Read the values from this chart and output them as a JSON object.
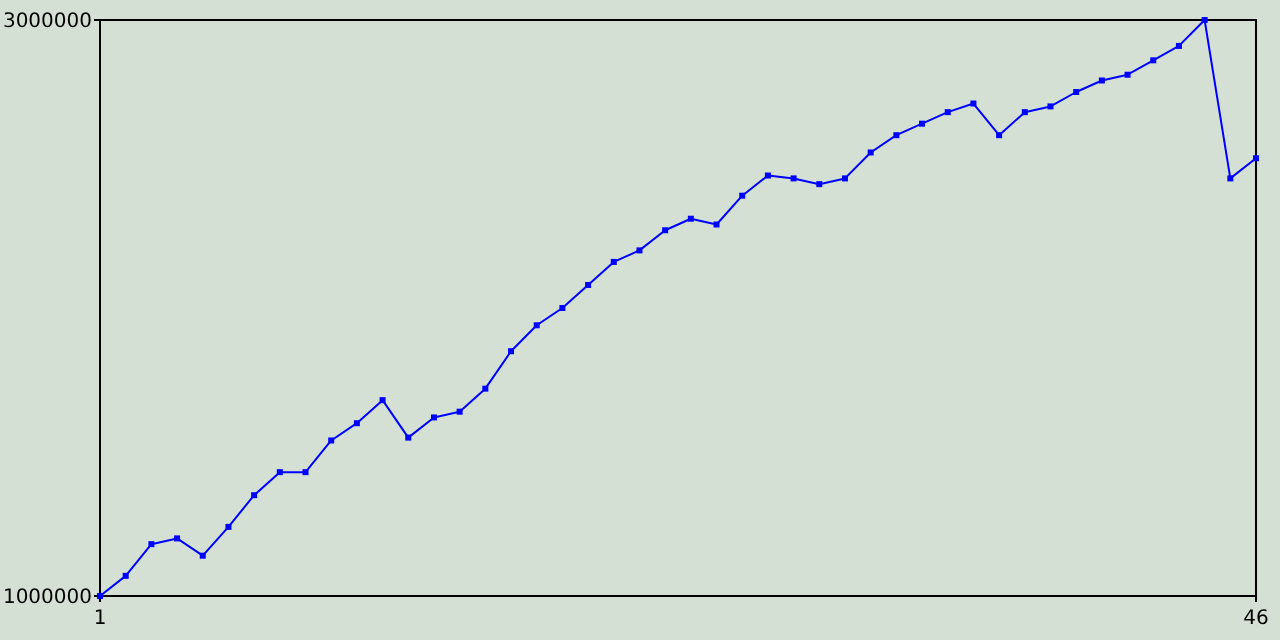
{
  "chart_data": {
    "type": "line",
    "x": [
      1,
      2,
      3,
      4,
      5,
      6,
      7,
      8,
      9,
      10,
      11,
      12,
      13,
      14,
      15,
      16,
      17,
      18,
      19,
      20,
      21,
      22,
      23,
      24,
      25,
      26,
      27,
      28,
      29,
      30,
      31,
      32,
      33,
      34,
      35,
      36,
      37,
      38,
      39,
      40,
      41,
      42,
      43,
      44,
      45,
      46
    ],
    "series": [
      {
        "color": "#0000ff",
        "values": [
          1000000,
          1070000,
          1180000,
          1200000,
          1140000,
          1240000,
          1350000,
          1430000,
          1430000,
          1540000,
          1600000,
          1680000,
          1550000,
          1620000,
          1640000,
          1720000,
          1850000,
          1940000,
          2000000,
          2080000,
          2160000,
          2200000,
          2270000,
          2310000,
          2290000,
          2390000,
          2460000,
          2450000,
          2430000,
          2450000,
          2540000,
          2600000,
          2640000,
          2680000,
          2710000,
          2600000,
          2680000,
          2700000,
          2750000,
          2790000,
          2810000,
          2860000,
          2910000,
          3000000,
          2450000,
          2520000
        ]
      }
    ],
    "xlim": [
      1,
      46
    ],
    "xticks": [
      1,
      46
    ],
    "ylim": [
      1000000,
      3000000
    ],
    "yticks": [
      1000000,
      3000000
    ],
    "marker": "square",
    "line_style": "solid"
  }
}
